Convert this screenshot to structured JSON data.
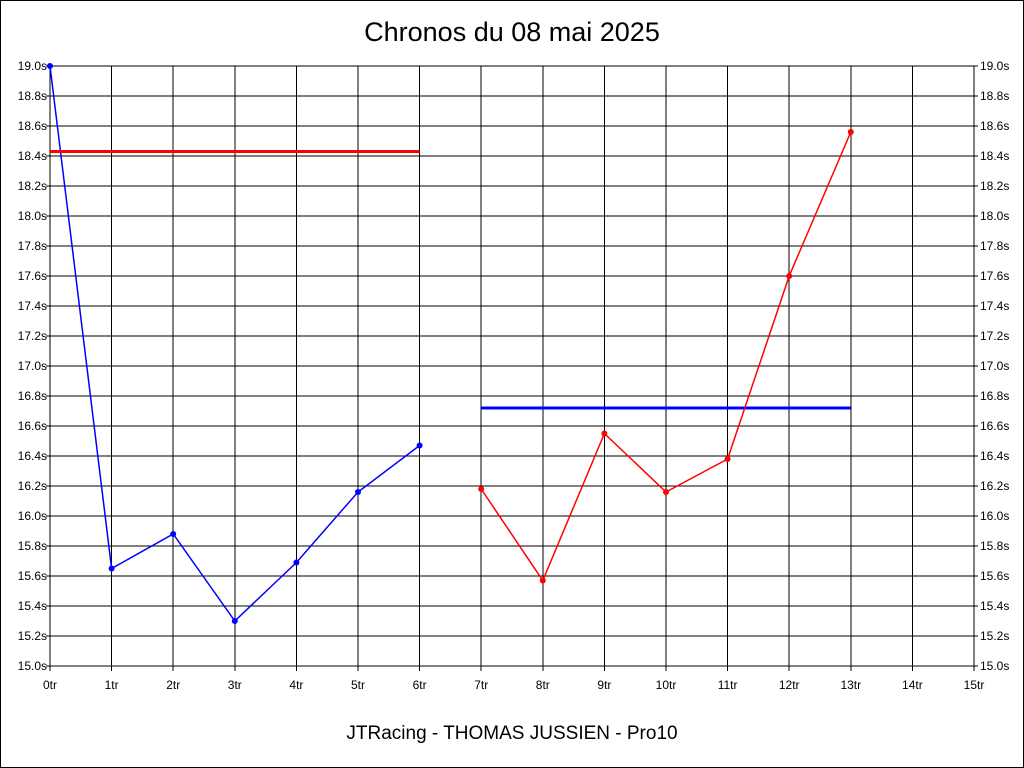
{
  "chart_data": {
    "type": "line",
    "title": "Chronos du 08 mai 2025",
    "footer": "JTRacing - THOMAS JUSSIEN - Pro10",
    "xlabel": "",
    "ylabel": "",
    "x_ticks": [
      "0tr",
      "1tr",
      "2tr",
      "3tr",
      "4tr",
      "5tr",
      "6tr",
      "7tr",
      "8tr",
      "9tr",
      "10tr",
      "11tr",
      "12tr",
      "13tr",
      "14tr",
      "15tr"
    ],
    "y_ticks": [
      "15.0s",
      "15.2s",
      "15.4s",
      "15.6s",
      "15.8s",
      "16.0s",
      "16.2s",
      "16.4s",
      "16.6s",
      "16.8s",
      "17.0s",
      "17.2s",
      "17.4s",
      "17.6s",
      "17.8s",
      "18.0s",
      "18.2s",
      "18.4s",
      "18.6s",
      "18.8s",
      "19.0s"
    ],
    "xlim": [
      0,
      15
    ],
    "ylim": [
      15.0,
      19.0
    ],
    "grid": true,
    "series": [
      {
        "color": "#0000ff",
        "points": [
          [
            0,
            19.0
          ],
          [
            1,
            15.65
          ],
          [
            2,
            15.88
          ],
          [
            3,
            15.3
          ],
          [
            4,
            15.69
          ],
          [
            5,
            16.16
          ],
          [
            6,
            16.47
          ]
        ],
        "average": 16.72,
        "average_range": [
          7,
          13
        ]
      },
      {
        "color": "#ff0000",
        "points": [
          [
            7,
            16.18
          ],
          [
            8,
            15.57
          ],
          [
            9,
            16.55
          ],
          [
            10,
            16.16
          ],
          [
            11,
            16.38
          ],
          [
            12,
            17.6
          ],
          [
            13,
            18.56
          ]
        ],
        "average": 18.43,
        "average_range": [
          0,
          6
        ]
      }
    ]
  }
}
